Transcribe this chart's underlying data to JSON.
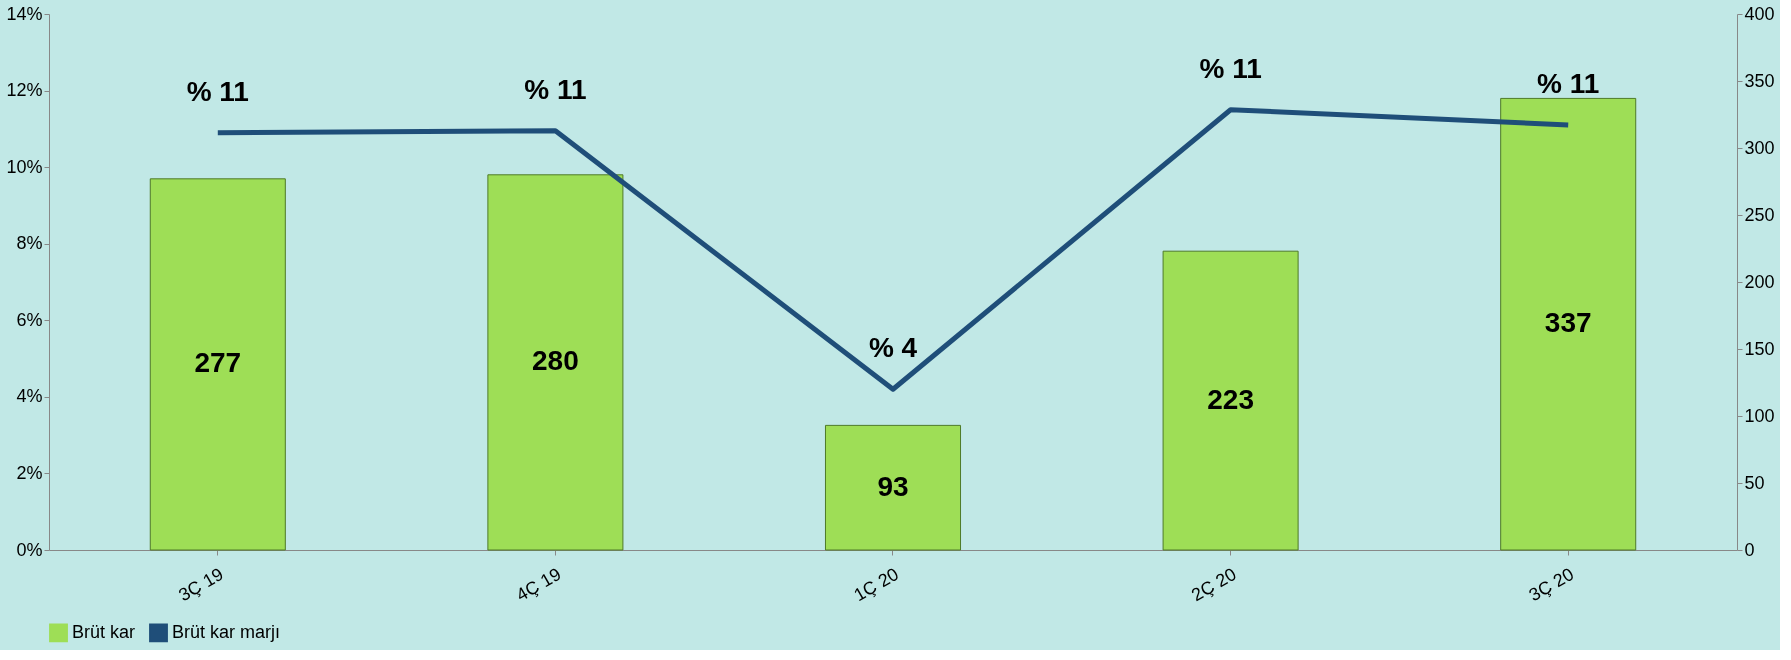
{
  "chart_data": {
    "type": "bar",
    "categories": [
      "3Ç 19",
      "4Ç 19",
      "1Ç 20",
      "2Ç 20",
      "3Ç 20"
    ],
    "series": [
      {
        "name": "Brüt kar",
        "axis": "y2",
        "color": "#9ede56",
        "values": [
          277,
          280,
          93,
          223,
          337
        ],
        "value_labels": [
          "277",
          "280",
          "93",
          "223",
          "337"
        ]
      },
      {
        "name": "Brüt kar marjı",
        "type": "line",
        "color": "#1f4e79",
        "values": [
          10.9,
          10.95,
          4.2,
          11.5,
          11.1
        ],
        "value_labels": [
          "% 11",
          "% 11",
          "% 4",
          "% 11",
          "% 11"
        ]
      }
    ],
    "ylim": [
      0,
      14
    ],
    "yticks": [
      {
        "value": 0,
        "label": "0%"
      },
      {
        "value": 2,
        "label": "2%"
      },
      {
        "value": 4,
        "label": "4%"
      },
      {
        "value": 6,
        "label": "6%"
      },
      {
        "value": 8,
        "label": "8%"
      },
      {
        "value": 10,
        "label": "10%"
      },
      {
        "value": 12,
        "label": "12%"
      },
      {
        "value": 14,
        "label": "14%"
      }
    ],
    "y2lim": [
      0,
      400
    ],
    "y2ticks": [
      0,
      50,
      100,
      150,
      200,
      250,
      300,
      350,
      400
    ],
    "grid": false,
    "legend": "bottom"
  }
}
